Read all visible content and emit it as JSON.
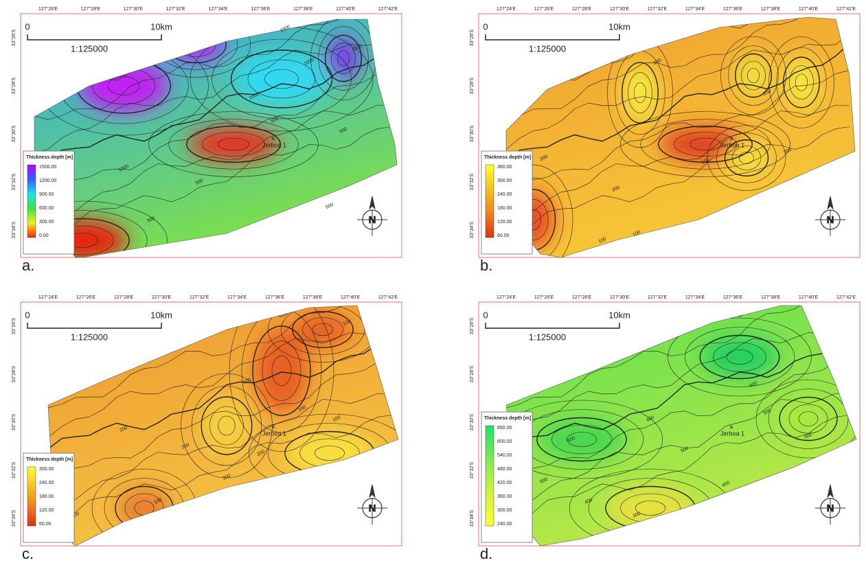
{
  "panels": [
    {
      "letter": "a.",
      "lon_labels": [
        "127°26'E",
        "127°28'E",
        "127°30'E",
        "127°32'E",
        "127°34'E",
        "127°36'E",
        "127°38'E",
        "127°40'E",
        "127°42'E"
      ],
      "lat_labels": [
        "33°26'S",
        "33°28'S",
        "33°30'S",
        "33°32'S",
        "33°34'S"
      ],
      "scale": {
        "start": "0",
        "end": "10km",
        "ratio": "1:125000"
      },
      "legend": {
        "title": "Thickness depth [m]",
        "labels": [
          "1500.00",
          "1200.00",
          "900.00",
          "600.00",
          "300.00",
          "0.00"
        ]
      },
      "well": "Jerboa 1",
      "north_label": "N",
      "contour_labels": [
        "1000",
        "1000",
        "1000",
        "1000",
        "500",
        "500",
        "500",
        "500",
        "1000",
        "500"
      ]
    },
    {
      "letter": "b.",
      "lon_labels": [
        "127°24'E",
        "127°26'E",
        "127°28'E",
        "127°30'E",
        "127°32'E",
        "127°34'E",
        "127°36'E",
        "127°38'E",
        "127°40'E",
        "127°42'E"
      ],
      "lat_labels": [
        "33°26'S",
        "33°28'S",
        "33°30'S",
        "33°32'S",
        "33°34'S"
      ],
      "scale": {
        "start": "0",
        "end": "10km",
        "ratio": "1:125000"
      },
      "legend": {
        "title": "Thickness depth [m]",
        "labels": [
          "360.00",
          "300.00",
          "240.00",
          "180.00",
          "120.00",
          "60.00"
        ]
      },
      "well": "Jerboa 1",
      "north_label": "N",
      "contour_labels": [
        "200",
        "200",
        "200",
        "200",
        "100",
        "100",
        "200",
        "100"
      ]
    },
    {
      "letter": "c.",
      "lon_labels": [
        "127°24'E",
        "127°26'E",
        "127°28'E",
        "127°30'E",
        "127°32'E",
        "127°34'E",
        "127°36'E",
        "127°38'E",
        "127°40'E",
        "127°42'E"
      ],
      "lat_labels": [
        "33°26'S",
        "33°28'S",
        "33°30'S",
        "33°32'S",
        "33°34'S"
      ],
      "scale": {
        "start": "0",
        "end": "10km",
        "ratio": "1:125000"
      },
      "legend": {
        "title": "Thickness depth [m]",
        "labels": [
          "300.00",
          "240.00",
          "180.00",
          "120.00",
          "60.00"
        ]
      },
      "well": "Jerboa 1",
      "north_label": "N",
      "contour_labels": [
        "100",
        "100",
        "100",
        "100",
        "200",
        "200",
        "200",
        "200",
        "100",
        "300"
      ]
    },
    {
      "letter": "d.",
      "lon_labels": [
        "127°24'E",
        "127°26'E",
        "127°28'E",
        "127°30'E",
        "127°32'E",
        "127°34'E",
        "127°36'E",
        "127°38'E",
        "127°40'E",
        "127°42'E"
      ],
      "lat_labels": [
        "33°26'S",
        "33°28'S",
        "33°30'S",
        "33°32'S",
        "33°34'S"
      ],
      "scale": {
        "start": "0",
        "end": "10km",
        "ratio": "1:125000"
      },
      "legend": {
        "title": "Thickness depth [m]",
        "labels": [
          "660.00",
          "600.00",
          "540.00",
          "480.00",
          "420.00",
          "360.00",
          "300.00",
          "240.00"
        ]
      },
      "well": "Jerboa 1",
      "north_label": "N",
      "contour_labels": [
        "600",
        "600",
        "600",
        "500",
        "500",
        "500",
        "400",
        "400",
        "300",
        "500"
      ]
    }
  ]
}
